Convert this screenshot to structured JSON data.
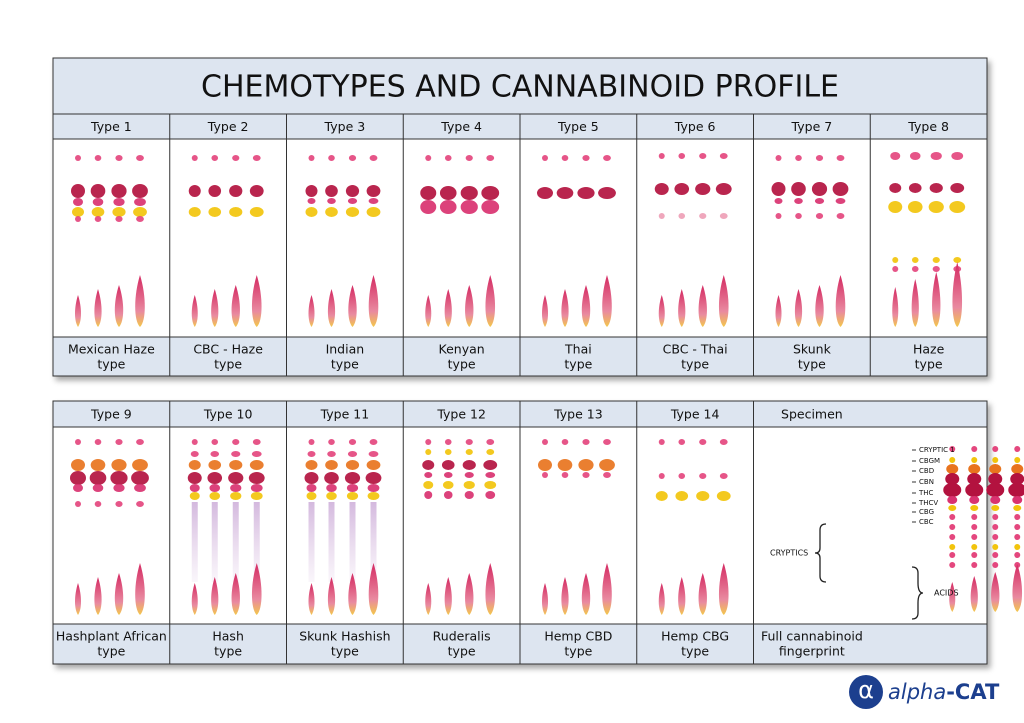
{
  "title": "CHEMOTYPES AND CANNABINOID PROFILE",
  "panels": [
    {
      "type": "Type 1",
      "name": [
        "Mexican Haze",
        "type"
      ]
    },
    {
      "type": "Type 2",
      "name": [
        "CBC - Haze",
        "type"
      ]
    },
    {
      "type": "Type 3",
      "name": [
        "Indian",
        "type"
      ]
    },
    {
      "type": "Type 4",
      "name": [
        "Kenyan",
        "type"
      ]
    },
    {
      "type": "Type 5",
      "name": [
        "Thai",
        "type"
      ]
    },
    {
      "type": "Type 6",
      "name": [
        "CBC - Thai",
        "type"
      ]
    },
    {
      "type": "Type 7",
      "name": [
        "Skunk",
        "type"
      ]
    },
    {
      "type": "Type 8",
      "name": [
        "Haze",
        "type"
      ]
    },
    {
      "type": "Type 9",
      "name": [
        "Hashplant African",
        "type"
      ]
    },
    {
      "type": "Type 10",
      "name": [
        "Hash",
        "type"
      ]
    },
    {
      "type": "Type 11",
      "name": [
        "Skunk Hashish",
        "type"
      ]
    },
    {
      "type": "Type 12",
      "name": [
        "Ruderalis",
        "type"
      ]
    },
    {
      "type": "Type 13",
      "name": [
        "Hemp CBD",
        "type"
      ]
    },
    {
      "type": "Type 14",
      "name": [
        "Hemp CBG",
        "type"
      ]
    },
    {
      "type": "Specimen",
      "name": [
        "Full cannabinoid",
        "fingerprint"
      ]
    }
  ],
  "specimen": {
    "bands": [
      "CRYPTIC 1",
      "CBGM",
      "CBD",
      "CBN",
      "THC",
      "THCV",
      "CBG",
      "CBC"
    ],
    "groups": [
      "CRYPTICS",
      "ACIDS"
    ]
  },
  "logo": {
    "symbol": "α",
    "name": "alpha",
    "suffix": "-CAT"
  }
}
